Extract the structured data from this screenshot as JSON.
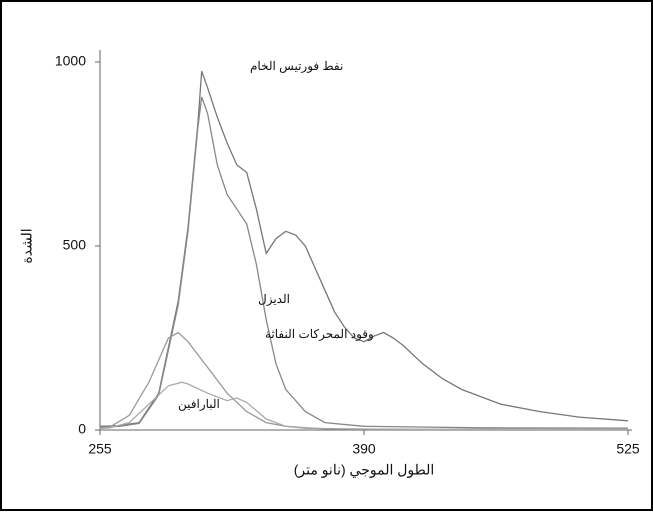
{
  "chart_data": {
    "type": "line",
    "xlabel": "الطول الموجي (نانو متر)",
    "ylabel": "الشدة",
    "xlim": [
      255,
      525
    ],
    "xticks": [
      255,
      390,
      525
    ],
    "ylim": [
      0,
      1000
    ],
    "yticks": [
      0,
      500,
      1000
    ],
    "grid": false,
    "series": [
      {
        "name": "نفط فورتيس الخام",
        "color": "#777777",
        "x": [
          255,
          265,
          275,
          285,
          295,
          300,
          305,
          307,
          310,
          315,
          320,
          325,
          330,
          335,
          340,
          345,
          350,
          355,
          360,
          365,
          370,
          375,
          380,
          385,
          390,
          395,
          400,
          405,
          410,
          420,
          430,
          440,
          450,
          460,
          480,
          500,
          525
        ],
        "values": [
          10,
          12,
          20,
          100,
          350,
          550,
          830,
          975,
          930,
          850,
          780,
          720,
          700,
          600,
          480,
          520,
          540,
          530,
          500,
          440,
          380,
          320,
          280,
          250,
          240,
          255,
          265,
          250,
          230,
          180,
          140,
          110,
          90,
          70,
          50,
          35,
          25
        ]
      },
      {
        "name": "الديزل",
        "color": "#888888",
        "x": [
          255,
          265,
          275,
          285,
          295,
          300,
          305,
          307,
          310,
          315,
          320,
          325,
          330,
          335,
          340,
          345,
          350,
          355,
          360,
          370,
          390,
          450,
          525
        ],
        "values": [
          8,
          10,
          18,
          95,
          340,
          540,
          820,
          905,
          860,
          720,
          640,
          600,
          560,
          450,
          300,
          180,
          110,
          80,
          50,
          20,
          10,
          6,
          5
        ]
      },
      {
        "name": "وقود المحركات النفاثة",
        "color": "#999999",
        "x": [
          255,
          260,
          270,
          280,
          290,
          295,
          300,
          310,
          320,
          330,
          340,
          350,
          360,
          380,
          420,
          525
        ],
        "values": [
          5,
          8,
          40,
          130,
          250,
          265,
          240,
          170,
          100,
          50,
          20,
          10,
          5,
          3,
          2,
          2
        ]
      },
      {
        "name": "البارافين",
        "color": "#aaaaaa",
        "x": [
          255,
          260,
          270,
          280,
          290,
          297,
          300,
          310,
          320,
          325,
          330,
          340,
          350,
          370,
          420,
          525
        ],
        "values": [
          4,
          6,
          20,
          70,
          120,
          130,
          125,
          100,
          80,
          87,
          75,
          30,
          10,
          3,
          2,
          2
        ]
      }
    ]
  }
}
